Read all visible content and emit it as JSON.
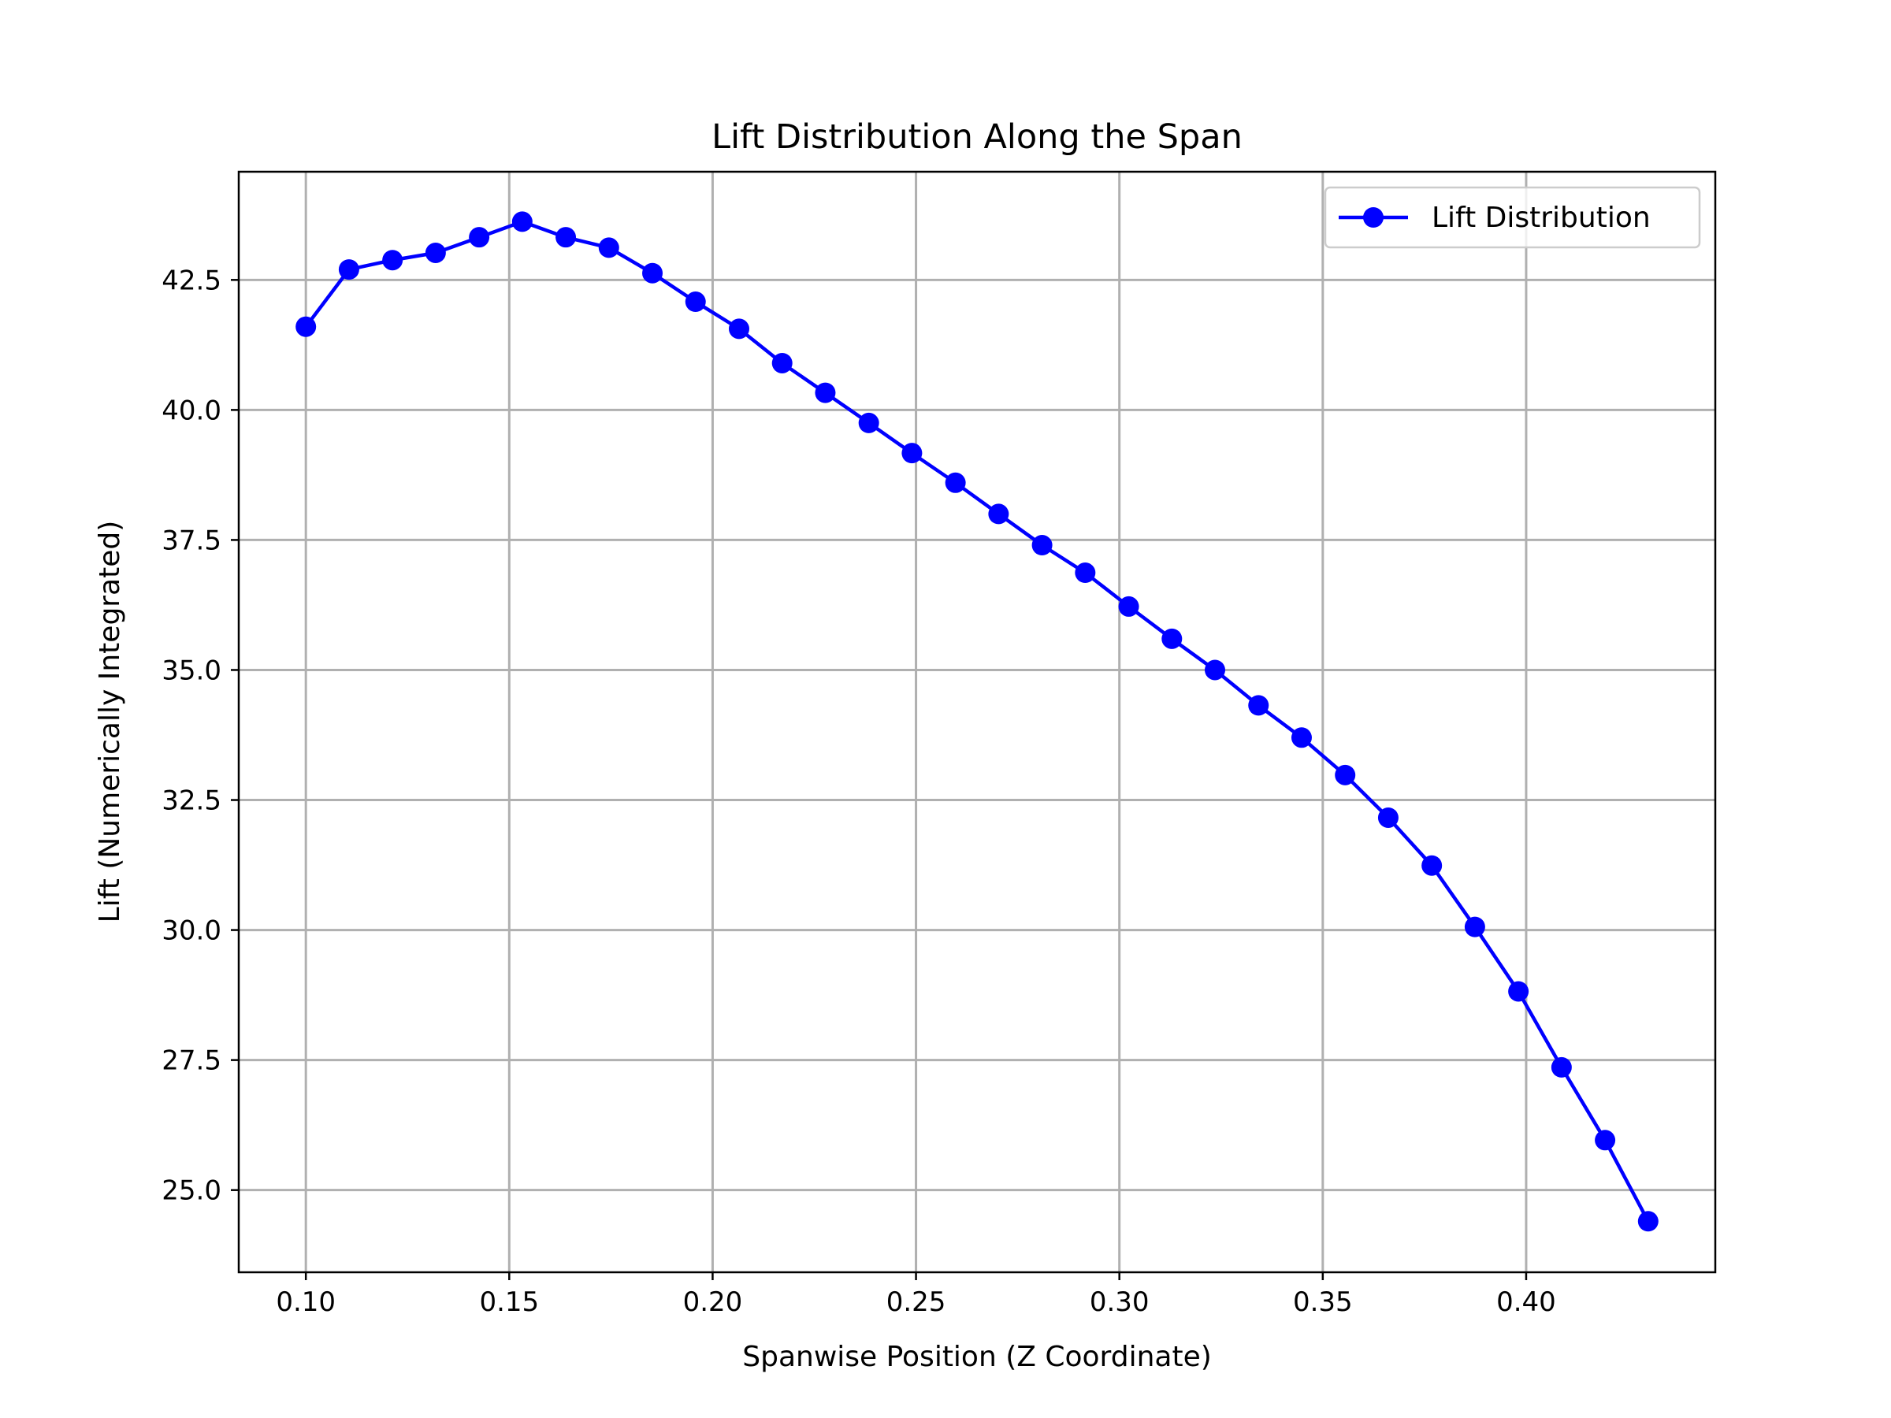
{
  "chart_data": {
    "type": "line",
    "title": "Lift Distribution Along the Span",
    "xlabel": "Spanwise Position (Z Coordinate)",
    "ylabel": "Lift (Numerically Integrated)",
    "xlim": [
      0.0835,
      0.4465
    ],
    "ylim": [
      23.42,
      44.58
    ],
    "xticks": [
      0.1,
      0.15,
      0.2,
      0.25,
      0.3,
      0.35,
      0.4
    ],
    "xtick_labels": [
      "0.10",
      "0.15",
      "0.20",
      "0.25",
      "0.30",
      "0.35",
      "0.40"
    ],
    "yticks": [
      25.0,
      27.5,
      30.0,
      32.5,
      35.0,
      37.5,
      40.0,
      42.5
    ],
    "ytick_labels": [
      "25.0",
      "27.5",
      "30.0",
      "32.5",
      "35.0",
      "37.5",
      "40.0",
      "42.5"
    ],
    "grid": true,
    "legend_position": "top-right",
    "series": [
      {
        "name": "Lift Distribution",
        "color": "#0000ff",
        "marker": "circle",
        "x": [
          0.1,
          0.1106,
          0.1213,
          0.1319,
          0.1426,
          0.1532,
          0.1639,
          0.1745,
          0.1852,
          0.1958,
          0.2065,
          0.2171,
          0.2277,
          0.2384,
          0.249,
          0.2597,
          0.2703,
          0.281,
          0.2916,
          0.3023,
          0.3129,
          0.3235,
          0.3342,
          0.3448,
          0.3555,
          0.3661,
          0.3768,
          0.3874,
          0.3981,
          0.4087,
          0.4194,
          0.43
        ],
        "y": [
          41.6,
          42.7,
          42.88,
          43.02,
          43.32,
          43.62,
          43.32,
          43.12,
          42.63,
          42.08,
          41.56,
          40.9,
          40.33,
          39.75,
          39.17,
          38.6,
          38.0,
          37.4,
          36.87,
          36.22,
          35.6,
          35.0,
          34.32,
          33.7,
          32.98,
          32.16,
          31.24,
          30.06,
          28.82,
          27.36,
          25.96,
          24.4
        ]
      }
    ]
  }
}
